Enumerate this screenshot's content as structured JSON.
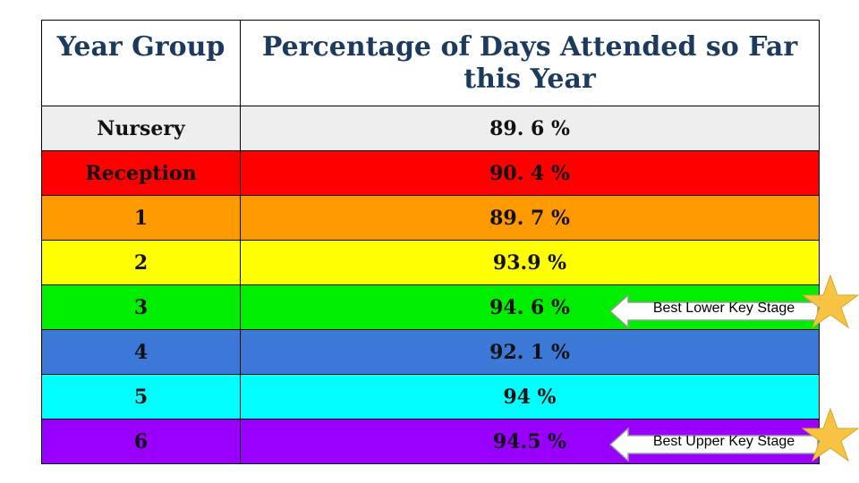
{
  "table": {
    "headers": [
      "Year Group",
      "Percentage of Days Attended so Far this Year"
    ],
    "rows": [
      {
        "year": "Nursery",
        "percentage": "89. 6 %",
        "color": "#eeeeee"
      },
      {
        "year": "Reception",
        "percentage": "90. 4 %",
        "color": "#ff0000"
      },
      {
        "year": "1",
        "percentage": "89. 7 %",
        "color": "#ff9900"
      },
      {
        "year": "2",
        "percentage": "93.9 %",
        "color": "#ffff00"
      },
      {
        "year": "3",
        "percentage": "94. 6 %",
        "color": "#00ee00"
      },
      {
        "year": "4",
        "percentage": "92. 1 %",
        "color": "#3c78d8"
      },
      {
        "year": "5",
        "percentage": "94  %",
        "color": "#00ffff"
      },
      {
        "year": "6",
        "percentage": "94.5 %",
        "color": "#9900ff"
      }
    ]
  },
  "callouts": {
    "lower": {
      "label": "Best Lower Key Stage",
      "icon": "star-icon",
      "star_color": "#f6c342"
    },
    "upper": {
      "label": "Best Upper Key Stage",
      "icon": "star-icon",
      "star_color": "#f6c342"
    }
  }
}
